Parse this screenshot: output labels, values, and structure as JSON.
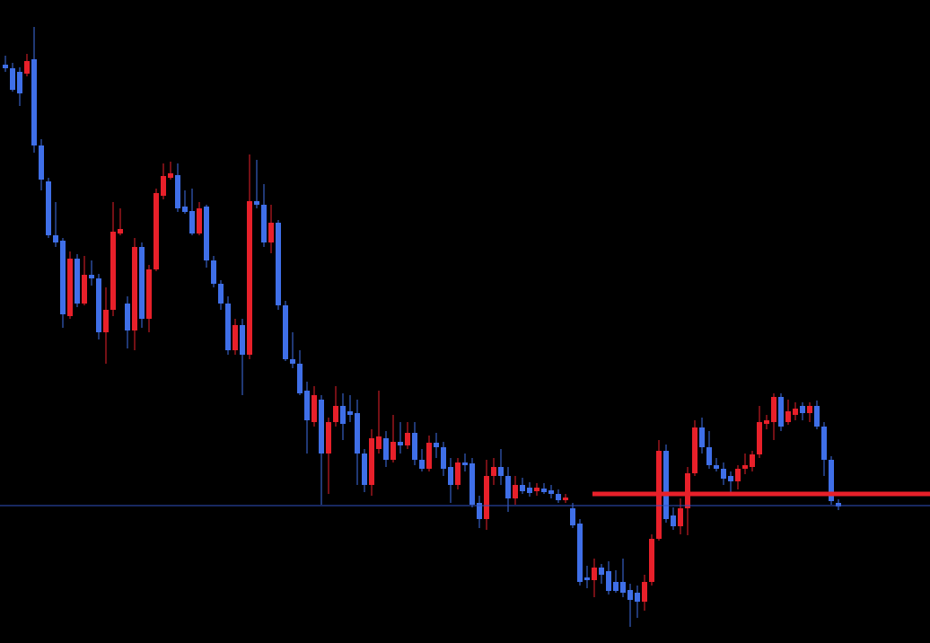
{
  "chart_data": {
    "type": "candlestick",
    "background": "#000000",
    "up_color": "#e8202a",
    "down_color": "#3f6fe8",
    "ylim": [
      0,
      716
    ],
    "open": [
      644,
      640,
      636,
      634,
      650,
      554,
      514,
      454,
      448,
      364,
      428,
      378,
      410,
      406,
      346,
      371,
      456,
      378,
      348,
      441,
      361,
      416,
      498,
      518,
      521,
      486,
      481,
      456,
      486,
      426,
      400,
      378,
      326,
      354,
      321,
      492,
      488,
      446,
      468,
      376,
      316,
      311,
      281,
      246,
      271,
      211,
      246,
      264,
      258,
      256,
      211,
      176,
      216,
      228,
      204,
      224,
      220,
      234,
      204,
      194,
      223,
      218,
      196,
      176,
      201,
      200,
      156,
      138,
      186,
      196,
      186,
      161,
      176,
      173,
      169,
      172,
      170,
      166,
      159,
      150,
      133,
      73,
      70,
      84,
      80,
      68,
      68,
      59,
      56,
      46,
      68,
      116,
      214,
      142,
      130,
      150,
      189,
      240,
      218,
      198,
      194,
      186,
      180,
      194,
      196,
      210,
      244,
      246,
      274,
      246,
      254,
      264,
      256,
      264,
      241,
      204,
      156
    ],
    "high": [
      654,
      646,
      641,
      656,
      686,
      561,
      518,
      491,
      451,
      436,
      433,
      431,
      426,
      411,
      396,
      491,
      484,
      386,
      451,
      446,
      421,
      506,
      534,
      536,
      534,
      504,
      506,
      491,
      488,
      431,
      404,
      386,
      361,
      361,
      544,
      538,
      511,
      488,
      471,
      381,
      346,
      326,
      291,
      286,
      276,
      251,
      286,
      278,
      276,
      271,
      216,
      238,
      281,
      236,
      254,
      246,
      246,
      246,
      216,
      231,
      234,
      224,
      206,
      206,
      211,
      206,
      164,
      204,
      206,
      216,
      196,
      186,
      184,
      179,
      178,
      178,
      176,
      171,
      166,
      156,
      138,
      86,
      94,
      88,
      91,
      81,
      94,
      66,
      64,
      76,
      121,
      226,
      221,
      151,
      161,
      196,
      248,
      251,
      236,
      206,
      201,
      191,
      198,
      211,
      214,
      264,
      254,
      278,
      278,
      271,
      268,
      268,
      268,
      270,
      246,
      208,
      160
    ],
    "low": [
      636,
      614,
      598,
      631,
      546,
      504,
      451,
      441,
      351,
      361,
      374,
      376,
      398,
      338,
      311,
      364,
      454,
      328,
      326,
      351,
      346,
      414,
      494,
      516,
      480,
      478,
      454,
      454,
      418,
      396,
      371,
      321,
      321,
      276,
      316,
      484,
      441,
      434,
      371,
      314,
      306,
      276,
      211,
      241,
      154,
      166,
      241,
      226,
      246,
      176,
      168,
      164,
      211,
      196,
      201,
      211,
      216,
      198,
      191,
      191,
      206,
      186,
      156,
      171,
      191,
      151,
      128,
      126,
      176,
      176,
      146,
      154,
      166,
      163,
      164,
      166,
      161,
      156,
      156,
      128,
      64,
      61,
      51,
      66,
      54,
      56,
      51,
      18,
      28,
      36,
      64,
      114,
      134,
      126,
      121,
      120,
      186,
      211,
      194,
      191,
      176,
      168,
      171,
      188,
      191,
      206,
      238,
      226,
      236,
      243,
      248,
      248,
      246,
      238,
      186,
      154,
      148
    ],
    "close": [
      640,
      616,
      612,
      648,
      554,
      516,
      454,
      446,
      366,
      428,
      378,
      410,
      406,
      346,
      371,
      458,
      461,
      348,
      441,
      361,
      416,
      501,
      520,
      523,
      484,
      480,
      456,
      484,
      426,
      400,
      378,
      326,
      354,
      321,
      492,
      488,
      446,
      468,
      376,
      316,
      311,
      278,
      248,
      276,
      211,
      246,
      264,
      244,
      254,
      211,
      176,
      228,
      230,
      204,
      224,
      220,
      234,
      204,
      194,
      223,
      218,
      194,
      176,
      201,
      198,
      154,
      138,
      186,
      196,
      186,
      161,
      176,
      169,
      167,
      173,
      168,
      166,
      159,
      162,
      131,
      68,
      70,
      84,
      76,
      58,
      58,
      56,
      48,
      46,
      68,
      116,
      214,
      138,
      130,
      150,
      189,
      240,
      218,
      198,
      194,
      183,
      180,
      194,
      198,
      210,
      246,
      248,
      274,
      241,
      258,
      261,
      256,
      264,
      241,
      204,
      158,
      152
    ],
    "hlines": [
      {
        "value": 153,
        "color": "#3050c0",
        "width": 1
      },
      {
        "value": 166,
        "color": "#e8202a",
        "width": 5
      }
    ]
  }
}
